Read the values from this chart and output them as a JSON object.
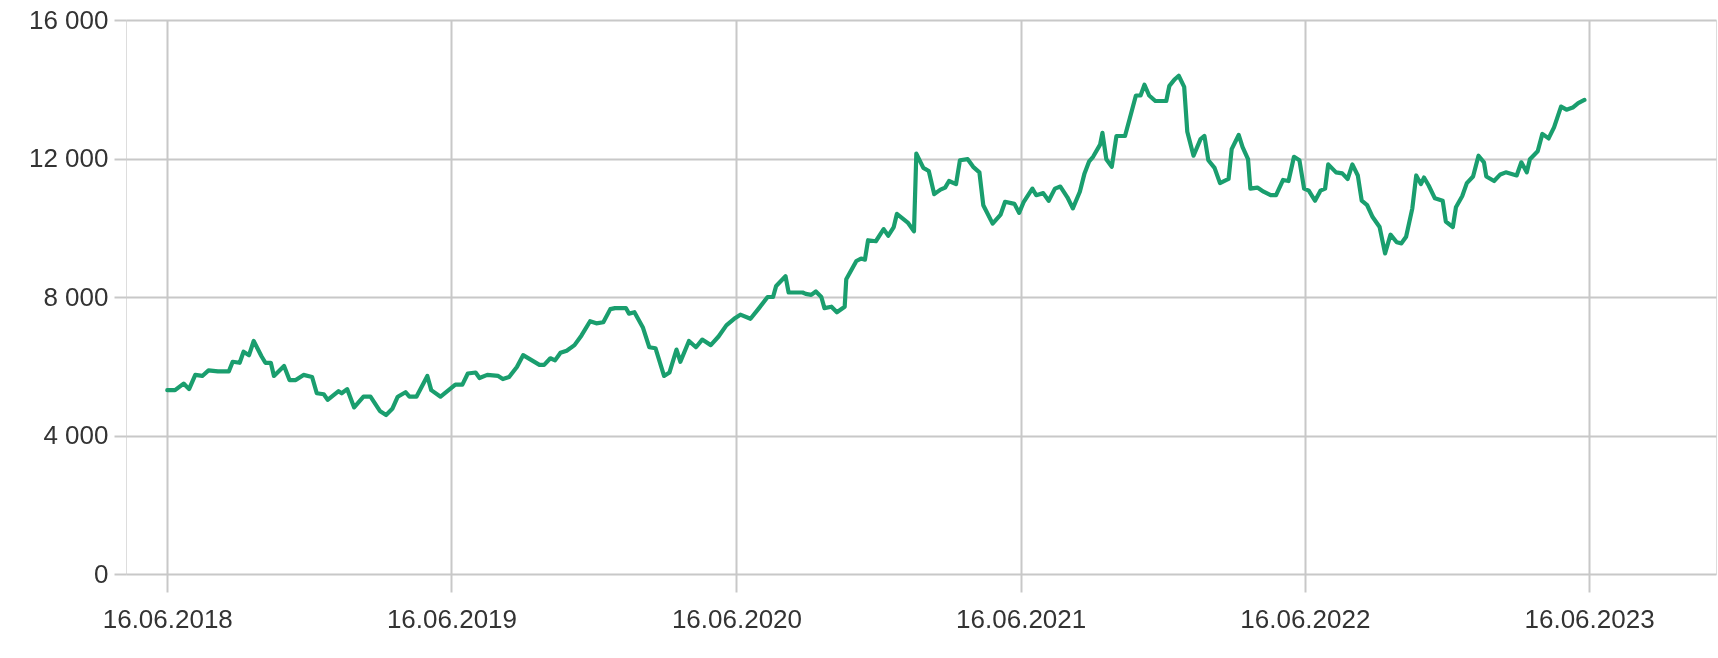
{
  "chart_data": {
    "type": "line",
    "xlim": [
      "2018-04-24",
      "2023-11-26"
    ],
    "xticks": [
      {
        "value": "2018-06-16",
        "label": "16.06.2018"
      },
      {
        "value": "2019-06-16",
        "label": "16.06.2019"
      },
      {
        "value": "2020-06-16",
        "label": "16.06.2020"
      },
      {
        "value": "2021-06-16",
        "label": "16.06.2021"
      },
      {
        "value": "2022-06-16",
        "label": "16.06.2022"
      },
      {
        "value": "2023-06-16",
        "label": "16.06.2023"
      }
    ],
    "ylim": [
      0,
      16000
    ],
    "yticks": [
      0,
      {
        "value": 4000,
        "label": "4 000"
      },
      {
        "value": 8000,
        "label": "8 000"
      },
      {
        "value": 12000,
        "label": "12 000"
      },
      {
        "value": 16000,
        "label": "16 000"
      }
    ],
    "grid": true,
    "marker": "none",
    "line_style": "solid",
    "x": [
      "2018-06-16",
      "2018-06-26",
      "2018-07-07",
      "2018-07-14",
      "2018-07-22",
      "2018-07-31",
      "2018-08-08",
      "2018-08-20",
      "2018-09-03",
      "2018-09-08",
      "2018-09-17",
      "2018-09-22",
      "2018-09-29",
      "2018-10-05",
      "2018-10-15",
      "2018-10-20",
      "2018-10-27",
      "2018-10-31",
      "2018-11-13",
      "2018-11-20",
      "2018-11-28",
      "2018-12-08",
      "2018-12-19",
      "2018-12-25",
      "2019-01-03",
      "2019-01-08",
      "2019-01-22",
      "2019-01-26",
      "2019-02-02",
      "2019-02-11",
      "2019-02-23",
      "2019-03-04",
      "2019-03-16",
      "2019-03-24",
      "2019-04-01",
      "2019-04-08",
      "2019-04-18",
      "2019-04-23",
      "2019-05-02",
      "2019-05-16",
      "2019-05-21",
      "2019-06-02",
      "2019-06-21",
      "2019-06-30",
      "2019-07-07",
      "2019-07-17",
      "2019-07-22",
      "2019-08-01",
      "2019-08-15",
      "2019-08-21",
      "2019-08-29",
      "2019-09-08",
      "2019-09-16",
      "2019-10-07",
      "2019-10-13",
      "2019-10-21",
      "2019-10-27",
      "2019-11-03",
      "2019-11-11",
      "2019-11-21",
      "2019-11-30",
      "2019-12-11",
      "2019-12-19",
      "2019-12-28",
      "2020-01-06",
      "2020-01-12",
      "2020-01-26",
      "2020-01-30",
      "2020-02-06",
      "2020-02-17",
      "2020-02-25",
      "2020-03-04",
      "2020-03-15",
      "2020-03-22",
      "2020-03-31",
      "2020-04-05",
      "2020-04-16",
      "2020-04-25",
      "2020-05-03",
      "2020-05-14",
      "2020-05-24",
      "2020-06-03",
      "2020-06-13",
      "2020-06-21",
      "2020-07-04",
      "2020-07-15",
      "2020-07-26",
      "2020-08-02",
      "2020-08-06",
      "2020-08-18",
      "2020-08-22",
      "2020-09-09",
      "2020-09-13",
      "2020-09-20",
      "2020-09-26",
      "2020-10-03",
      "2020-10-07",
      "2020-10-16",
      "2020-10-23",
      "2020-11-02",
      "2020-11-04",
      "2020-11-17",
      "2020-11-23",
      "2020-11-28",
      "2020-12-02",
      "2020-12-12",
      "2020-12-22",
      "2020-12-28",
      "2021-01-04",
      "2021-01-08",
      "2021-01-22",
      "2021-01-30",
      "2021-02-02",
      "2021-02-11",
      "2021-02-18",
      "2021-02-25",
      "2021-03-05",
      "2021-03-11",
      "2021-03-16",
      "2021-03-25",
      "2021-03-30",
      "2021-04-09",
      "2021-04-16",
      "2021-04-24",
      "2021-04-29",
      "2021-05-11",
      "2021-05-21",
      "2021-05-27",
      "2021-06-08",
      "2021-06-14",
      "2021-06-20",
      "2021-07-01",
      "2021-07-06",
      "2021-07-15",
      "2021-07-22",
      "2021-07-30",
      "2021-08-06",
      "2021-08-15",
      "2021-08-22",
      "2021-08-31",
      "2021-09-06",
      "2021-09-12",
      "2021-09-17",
      "2021-09-26",
      "2021-09-29",
      "2021-10-04",
      "2021-10-11",
      "2021-10-17",
      "2021-10-28",
      "2021-11-03",
      "2021-11-11",
      "2021-11-17",
      "2021-11-22",
      "2021-11-28",
      "2021-12-06",
      "2021-12-20",
      "2021-12-24",
      "2021-12-31",
      "2022-01-05",
      "2022-01-12",
      "2022-01-16",
      "2022-01-24",
      "2022-02-02",
      "2022-02-07",
      "2022-02-12",
      "2022-02-20",
      "2022-02-27",
      "2022-03-10",
      "2022-03-14",
      "2022-03-23",
      "2022-03-28",
      "2022-04-04",
      "2022-04-07",
      "2022-04-16",
      "2022-04-24",
      "2022-05-03",
      "2022-05-10",
      "2022-05-19",
      "2022-05-26",
      "2022-06-02",
      "2022-06-09",
      "2022-06-15",
      "2022-06-21",
      "2022-06-29",
      "2022-07-06",
      "2022-07-12",
      "2022-07-16",
      "2022-07-26",
      "2022-08-03",
      "2022-08-10",
      "2022-08-16",
      "2022-08-23",
      "2022-08-28",
      "2022-09-04",
      "2022-09-11",
      "2022-09-20",
      "2022-09-27",
      "2022-10-04",
      "2022-10-12",
      "2022-10-18",
      "2022-10-24",
      "2022-11-01",
      "2022-11-06",
      "2022-11-12",
      "2022-11-16",
      "2022-11-22",
      "2022-11-30",
      "2022-12-10",
      "2022-12-14",
      "2022-12-23",
      "2022-12-27",
      "2023-01-04",
      "2023-01-10",
      "2023-01-18",
      "2023-01-25",
      "2023-02-01",
      "2023-02-04",
      "2023-02-14",
      "2023-02-22",
      "2023-03-01",
      "2023-03-15",
      "2023-03-21",
      "2023-03-28",
      "2023-04-01",
      "2023-04-11",
      "2023-04-17",
      "2023-04-25",
      "2023-05-02",
      "2023-05-11",
      "2023-05-18",
      "2023-05-26",
      "2023-06-02",
      "2023-06-10"
    ],
    "series": [
      {
        "color": "#1a9e6e",
        "values": [
          5310,
          5310,
          5500,
          5340,
          5750,
          5720,
          5880,
          5850,
          5850,
          6130,
          6100,
          6420,
          6320,
          6730,
          6290,
          6100,
          6100,
          5720,
          6010,
          5600,
          5600,
          5750,
          5690,
          5220,
          5190,
          5030,
          5280,
          5220,
          5340,
          4810,
          5120,
          5120,
          4710,
          4590,
          4770,
          5120,
          5250,
          5120,
          5120,
          5720,
          5310,
          5120,
          5470,
          5470,
          5790,
          5820,
          5660,
          5750,
          5720,
          5630,
          5690,
          5980,
          6320,
          6040,
          6040,
          6230,
          6170,
          6390,
          6450,
          6610,
          6890,
          7300,
          7240,
          7270,
          7650,
          7680,
          7680,
          7520,
          7560,
          7110,
          6550,
          6520,
          5720,
          5820,
          6480,
          6130,
          6730,
          6550,
          6770,
          6610,
          6860,
          7180,
          7370,
          7490,
          7370,
          7680,
          8000,
          8000,
          8320,
          8600,
          8130,
          8130,
          8090,
          8060,
          8160,
          8000,
          7680,
          7720,
          7560,
          7720,
          8510,
          9040,
          9110,
          9080,
          9640,
          9610,
          9960,
          9770,
          10020,
          10400,
          10150,
          9900,
          12140,
          11730,
          11640,
          10970,
          11100,
          11160,
          11350,
          11260,
          11950,
          11980,
          11760,
          11600,
          10650,
          10120,
          10370,
          10750,
          10690,
          10430,
          10750,
          11130,
          10940,
          11000,
          10780,
          11130,
          11190,
          10880,
          10560,
          11040,
          11570,
          11920,
          12050,
          12400,
          12740,
          11980,
          11760,
          12650,
          12650,
          13150,
          13820,
          13820,
          14130,
          13820,
          13660,
          13660,
          14100,
          14290,
          14390,
          14070,
          12770,
          12080,
          12560,
          12650,
          11950,
          11730,
          11290,
          11410,
          12270,
          12680,
          12330,
          11980,
          11130,
          11160,
          11040,
          10940,
          10940,
          11380,
          11350,
          12050,
          11950,
          11130,
          11070,
          10780,
          11070,
          11130,
          11830,
          11600,
          11570,
          11410,
          11830,
          11510,
          10780,
          10650,
          10310,
          10020,
          9260,
          9800,
          9580,
          9550,
          9740,
          10560,
          11510,
          11260,
          11450,
          11220,
          10850,
          10780,
          10180,
          10020,
          10590,
          10910,
          11290,
          11480,
          12080,
          11890,
          11480,
          11350,
          11540,
          11600,
          11510,
          11890,
          11600,
          11980,
          12210,
          12710,
          12580,
          12900,
          13500,
          13410,
          13470,
          13600,
          13690
        ]
      }
    ]
  }
}
